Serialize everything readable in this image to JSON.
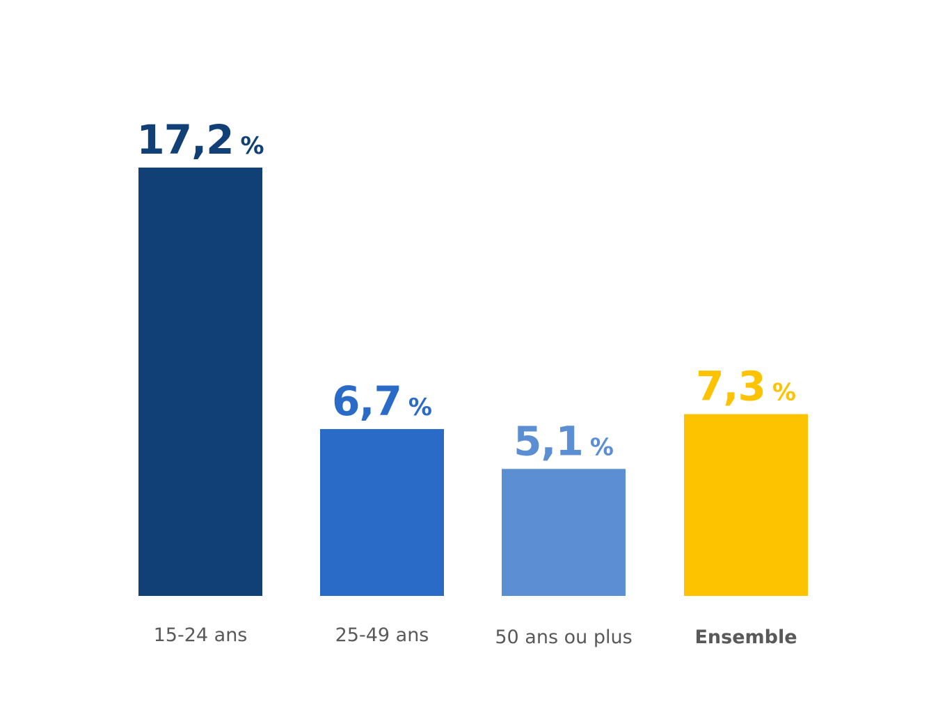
{
  "chart_data": {
    "type": "bar",
    "categories": [
      "15-24 ans",
      "25-49 ans",
      "50 ans ou plus",
      "Ensemble"
    ],
    "values": [
      17.2,
      6.7,
      5.1,
      7.3
    ],
    "value_labels": [
      "17,2",
      "6,7",
      "5,1",
      "7,3"
    ],
    "unit": "%",
    "colors": [
      "#114077",
      "#2a6bc8",
      "#5b8ed3",
      "#fdc300"
    ],
    "emphasized_category": "Ensemble",
    "label_color": "#595959",
    "ylim": [
      0,
      17.2
    ],
    "grid": false,
    "legend": "none"
  }
}
